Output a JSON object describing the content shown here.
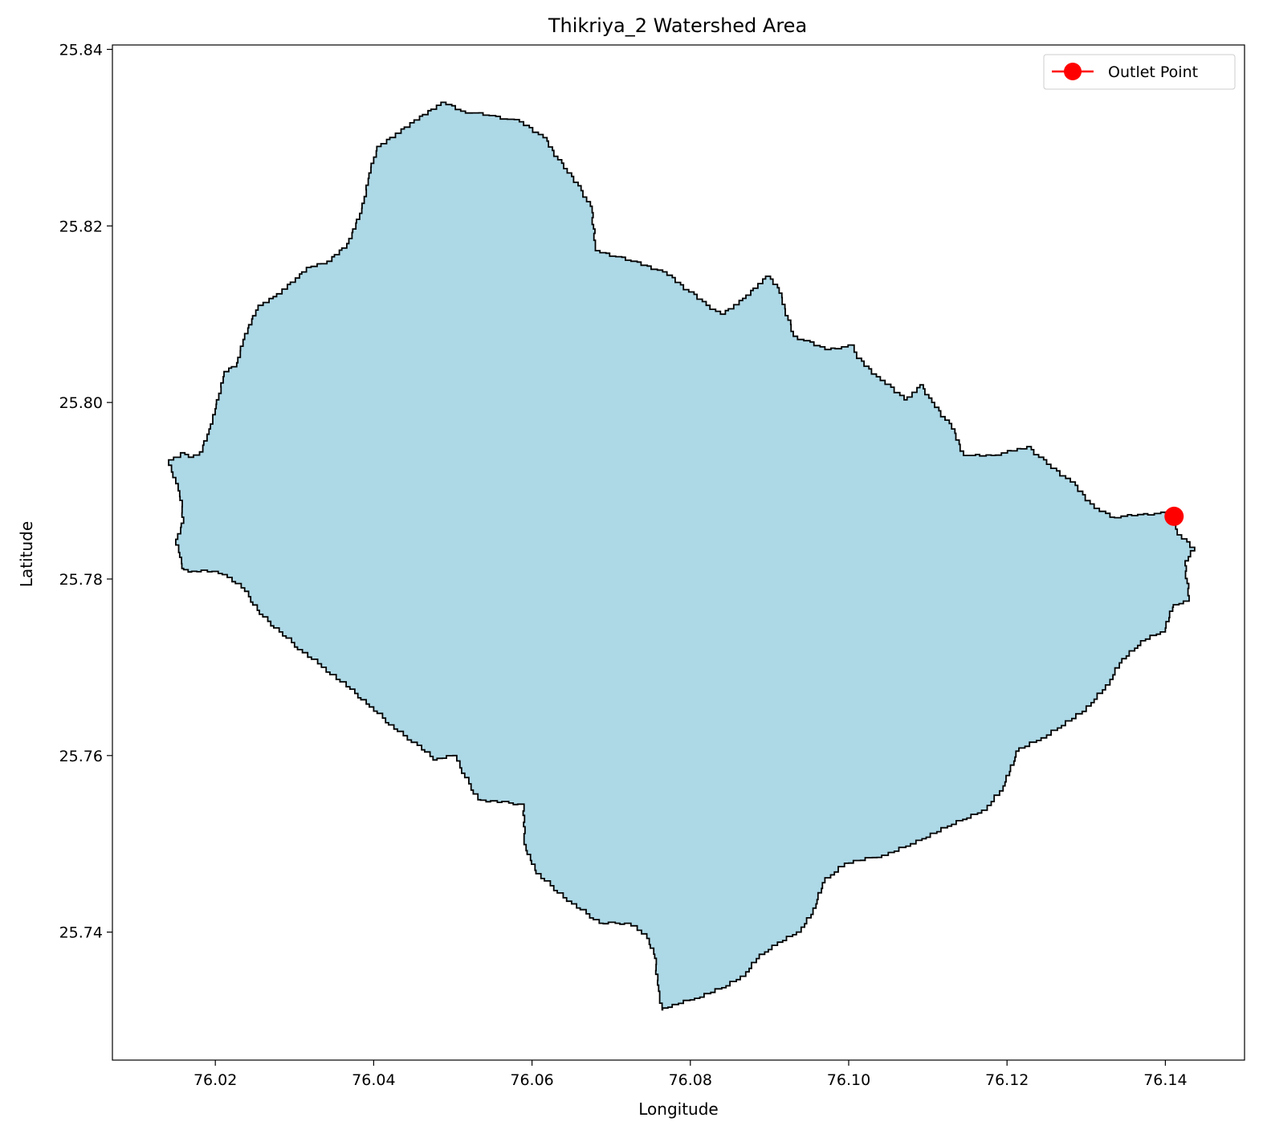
{
  "title": "Thikriya_2 Watershed Area",
  "xlabel": "Longitude",
  "ylabel": "Latitude",
  "legend_label": "Outlet Point",
  "colors": {
    "watershed_fill": "#add8e6",
    "watershed_edge": "#000000",
    "outlet": "#ff0000"
  },
  "chart_data": {
    "type": "scatter",
    "title": "Thikriya_2 Watershed Area",
    "xlabel": "Longitude",
    "ylabel": "Latitude",
    "xlim": [
      76.007,
      76.15
    ],
    "ylim": [
      25.7255,
      25.8405
    ],
    "xticks": [
      "76.02",
      "76.04",
      "76.06",
      "76.08",
      "76.10",
      "76.12",
      "76.14"
    ],
    "yticks": [
      "25.74",
      "25.76",
      "25.78",
      "25.80",
      "25.82",
      "25.84"
    ],
    "legend_position": "top-right",
    "grid": false,
    "series": [
      {
        "name": "Outlet Point",
        "x": [
          76.1411
        ],
        "y": [
          25.7871
        ]
      }
    ],
    "watershed_boundary": [
      [
        76.0141,
        25.7935
      ],
      [
        76.0156,
        25.7943
      ],
      [
        76.0166,
        25.7938
      ],
      [
        76.018,
        25.7944
      ],
      [
        76.0192,
        25.797
      ],
      [
        76.0201,
        25.7998
      ],
      [
        76.0211,
        25.8035
      ],
      [
        76.0227,
        25.8045
      ],
      [
        76.0237,
        25.8078
      ],
      [
        76.0254,
        25.811
      ],
      [
        76.0273,
        25.812
      ],
      [
        76.0301,
        25.8141
      ],
      [
        76.0315,
        25.8153
      ],
      [
        76.0341,
        25.816
      ],
      [
        76.0366,
        25.818
      ],
      [
        76.0385,
        25.822
      ],
      [
        76.0394,
        25.826
      ],
      [
        76.0404,
        25.829
      ],
      [
        76.0451,
        25.832
      ],
      [
        76.0485,
        25.834
      ],
      [
        76.051,
        25.833
      ],
      [
        76.0546,
        25.8325
      ],
      [
        76.0584,
        25.8318
      ],
      [
        76.0614,
        25.83
      ],
      [
        76.064,
        25.8265
      ],
      [
        76.0662,
        25.824
      ],
      [
        76.0676,
        25.8215
      ],
      [
        76.068,
        25.8172
      ],
      [
        76.0725,
        25.816
      ],
      [
        76.0765,
        25.8148
      ],
      [
        76.082,
        25.811
      ],
      [
        76.0838,
        25.81
      ],
      [
        76.0866,
        25.8118
      ],
      [
        76.0895,
        25.8143
      ],
      [
        76.091,
        25.813
      ],
      [
        76.093,
        25.8075
      ],
      [
        76.097,
        25.806
      ],
      [
        76.1005,
        25.8065
      ],
      [
        76.101,
        25.805
      ],
      [
        76.104,
        25.8025
      ],
      [
        76.107,
        25.8003
      ],
      [
        76.109,
        25.802
      ],
      [
        76.1105,
        25.8
      ],
      [
        76.113,
        25.797
      ],
      [
        76.1145,
        25.794
      ],
      [
        76.118,
        25.794
      ],
      [
        76.1225,
        25.795
      ],
      [
        76.125,
        25.793
      ],
      [
        76.128,
        25.791
      ],
      [
        76.131,
        25.788
      ],
      [
        76.133,
        25.787
      ],
      [
        76.1365,
        25.7873
      ],
      [
        76.14,
        25.7875
      ],
      [
        76.1411,
        25.7871
      ],
      [
        76.1415,
        25.785
      ],
      [
        76.1437,
        25.7832
      ],
      [
        76.1425,
        25.7815
      ],
      [
        76.143,
        25.7775
      ],
      [
        76.141,
        25.7768
      ],
      [
        76.14,
        25.774
      ],
      [
        76.1375,
        25.773
      ],
      [
        76.1345,
        25.7705
      ],
      [
        76.133,
        25.768
      ],
      [
        76.13,
        25.765
      ],
      [
        76.125,
        25.762
      ],
      [
        76.1215,
        25.7605
      ],
      [
        76.1195,
        25.756
      ],
      [
        76.1175,
        25.7538
      ],
      [
        76.113,
        25.752
      ],
      [
        76.1085,
        25.75
      ],
      [
        76.105,
        25.7487
      ],
      [
        76.1,
        25.7478
      ],
      [
        76.097,
        25.7456
      ],
      [
        76.0955,
        25.742
      ],
      [
        76.094,
        25.74
      ],
      [
        76.091,
        25.7385
      ],
      [
        76.0887,
        25.737
      ],
      [
        76.087,
        25.735
      ],
      [
        76.0845,
        25.7337
      ],
      [
        76.0812,
        25.7325
      ],
      [
        76.0785,
        25.7318
      ],
      [
        76.0765,
        25.7312
      ],
      [
        76.076,
        25.734
      ],
      [
        76.0755,
        25.7375
      ],
      [
        76.0745,
        25.7398
      ],
      [
        76.0725,
        25.741
      ],
      [
        76.069,
        25.741
      ],
      [
        76.065,
        25.7435
      ],
      [
        76.0605,
        25.747
      ],
      [
        76.059,
        25.7505
      ],
      [
        76.059,
        25.7545
      ],
      [
        76.0535,
        25.755
      ],
      [
        76.0515,
        25.758
      ],
      [
        76.0505,
        25.76
      ],
      [
        76.048,
        25.7595
      ],
      [
        76.0455,
        25.7615
      ],
      [
        76.043,
        25.763
      ],
      [
        76.04,
        25.7655
      ],
      [
        76.037,
        25.7678
      ],
      [
        76.034,
        25.77
      ],
      [
        76.031,
        25.772
      ],
      [
        76.0285,
        25.774
      ],
      [
        76.026,
        25.776
      ],
      [
        76.0237,
        25.779
      ],
      [
        76.0215,
        25.7805
      ],
      [
        76.019,
        25.781
      ],
      [
        76.017,
        25.7808
      ],
      [
        76.016,
        25.7812
      ],
      [
        76.0155,
        25.783
      ],
      [
        76.015,
        25.7845
      ],
      [
        76.016,
        25.787
      ],
      [
        76.0155,
        25.79
      ],
      [
        76.015,
        25.7915
      ],
      [
        76.0141,
        25.7935
      ]
    ]
  }
}
